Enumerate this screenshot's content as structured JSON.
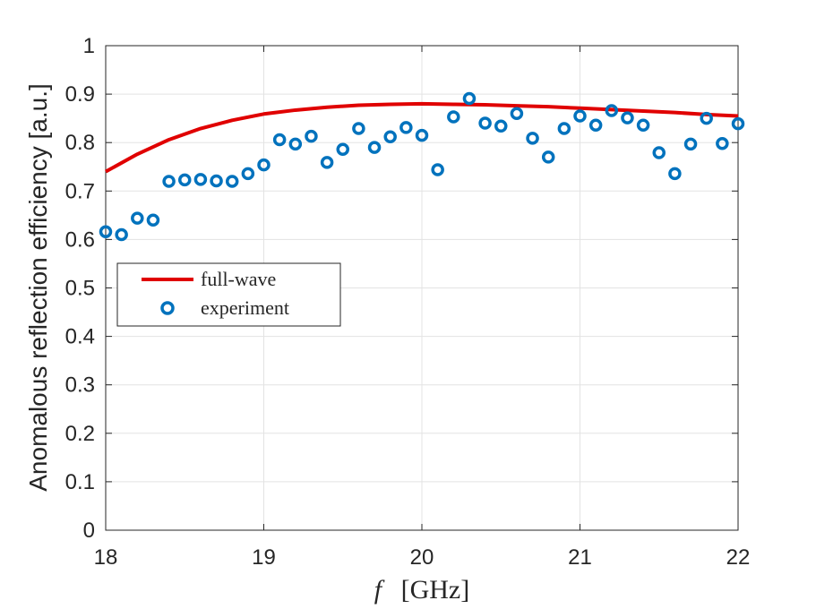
{
  "chart_data": {
    "type": "line",
    "title": "",
    "xlabel_symbol": "f",
    "xlabel_unit": "[GHz]",
    "ylabel": "Anomalous reflection efficiency [a.u.]",
    "xlim": [
      18,
      22
    ],
    "ylim": [
      0,
      1
    ],
    "x_ticks": [
      18,
      19,
      20,
      21,
      22
    ],
    "y_ticks": [
      0,
      0.1,
      0.2,
      0.3,
      0.4,
      0.5,
      0.6,
      0.7,
      0.8,
      0.9,
      1
    ],
    "grid": true,
    "legend_position": "middle-left",
    "series": [
      {
        "name": "full-wave",
        "kind": "line",
        "color": "#e00000",
        "x": [
          18.0,
          18.2,
          18.4,
          18.6,
          18.8,
          19.0,
          19.2,
          19.4,
          19.6,
          19.8,
          20.0,
          20.2,
          20.4,
          20.6,
          20.8,
          21.0,
          21.2,
          21.4,
          21.6,
          21.8,
          22.0
        ],
        "y": [
          0.74,
          0.776,
          0.806,
          0.829,
          0.846,
          0.859,
          0.867,
          0.873,
          0.877,
          0.879,
          0.88,
          0.879,
          0.878,
          0.876,
          0.874,
          0.871,
          0.868,
          0.865,
          0.862,
          0.858,
          0.855
        ]
      },
      {
        "name": "experiment",
        "kind": "scatter",
        "color": "#0072bd",
        "x": [
          18.0,
          18.1,
          18.2,
          18.3,
          18.4,
          18.5,
          18.6,
          18.7,
          18.8,
          18.9,
          19.0,
          19.1,
          19.2,
          19.3,
          19.4,
          19.5,
          19.6,
          19.7,
          19.8,
          19.9,
          20.0,
          20.1,
          20.2,
          20.3,
          20.4,
          20.5,
          20.6,
          20.7,
          20.8,
          20.9,
          21.0,
          21.1,
          21.2,
          21.3,
          21.4,
          21.5,
          21.6,
          21.7,
          21.8,
          21.9,
          22.0
        ],
        "y": [
          0.616,
          0.61,
          0.644,
          0.64,
          0.72,
          0.723,
          0.724,
          0.721,
          0.72,
          0.736,
          0.754,
          0.806,
          0.797,
          0.813,
          0.759,
          0.786,
          0.829,
          0.79,
          0.812,
          0.831,
          0.815,
          0.744,
          0.853,
          0.891,
          0.84,
          0.834,
          0.86,
          0.809,
          0.77,
          0.829,
          0.855,
          0.836,
          0.866,
          0.851,
          0.836,
          0.779,
          0.736,
          0.797,
          0.85,
          0.798,
          0.839
        ]
      }
    ]
  }
}
